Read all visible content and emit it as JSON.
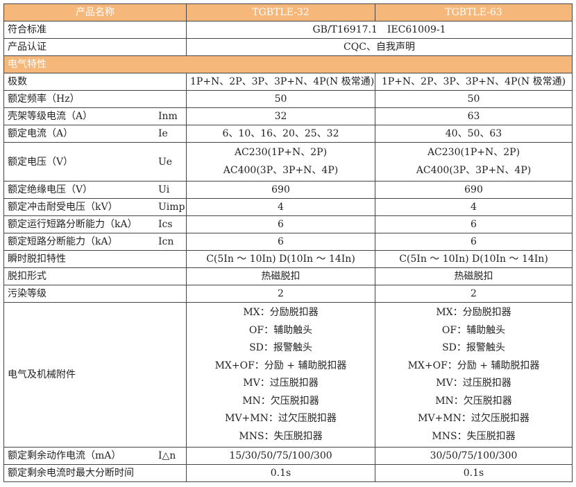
{
  "header": {
    "name": "产品名称",
    "model1": "TGBTLE-32",
    "model2": "TGBTLE-63"
  },
  "standard": {
    "label": "符合标准",
    "value": "GB/T16917.1　IEC61009-1"
  },
  "certification": {
    "label": "产品认证",
    "value": "CQC、自我声明"
  },
  "section": "电气特性",
  "rows": [
    {
      "label": "极数",
      "sym": "",
      "v1": [
        "1P+N、2P、3P、3P+N、4P(N 极常通)"
      ],
      "v2": [
        "1P+N、2P、3P、3P+N、4P(N 极常通)"
      ]
    },
    {
      "label": "额定频率（Hz）",
      "sym": "",
      "v1": [
        "50"
      ],
      "v2": [
        "50"
      ]
    },
    {
      "label": "壳架等级电流（A）",
      "sym": "Inm",
      "v1": [
        "32"
      ],
      "v2": [
        "63"
      ]
    },
    {
      "label": "额定电流（A）",
      "sym": "Ie",
      "v1": [
        "6、10、16、20、25、32"
      ],
      "v2": [
        "40、50、63"
      ]
    },
    {
      "label": "额定电压（V）",
      "sym": "Ue",
      "v1": [
        "AC230(1P+N、2P)",
        "AC400(3P、3P+N、4P)"
      ],
      "v2": [
        "AC230(1P+N、2P)",
        "AC400(3P、3P+N、4P)"
      ]
    },
    {
      "label": "额定绝缘电压（V）",
      "sym": "Ui",
      "v1": [
        "690"
      ],
      "v2": [
        "690"
      ]
    },
    {
      "label": "额定冲击耐受电压（kV）",
      "sym": "Uimp",
      "v1": [
        "4"
      ],
      "v2": [
        "4"
      ]
    },
    {
      "label": "额定运行短路分断能力（kA）",
      "sym": "Ics",
      "v1": [
        "6"
      ],
      "v2": [
        "6"
      ]
    },
    {
      "label": "额定短路分断能力（kA）",
      "sym": "Icn",
      "v1": [
        "6"
      ],
      "v2": [
        "6"
      ]
    },
    {
      "label": "瞬时脱扣特性",
      "sym": "",
      "v1": [
        "C(5In ～ 10In) D(10In ～ 14In)"
      ],
      "v2": [
        "C(5In ～ 10In) D(10In ～ 14In)"
      ]
    },
    {
      "label": "脱扣形式",
      "sym": "",
      "v1": [
        "热磁脱扣"
      ],
      "v2": [
        "热磁脱扣"
      ]
    },
    {
      "label": "污染等级",
      "sym": "",
      "v1": [
        "2"
      ],
      "v2": [
        "2"
      ]
    },
    {
      "label": "电气及机械附件",
      "sym": "",
      "v1": [
        "MX：分励脱扣器",
        "OF：辅助触头",
        "SD：报警触头",
        "MX+OF：分励 + 辅助脱扣器",
        "MV：过压脱扣器",
        "MN：欠压脱扣器",
        "MV+MN：过欠压脱扣器",
        "MNS：失压脱扣器"
      ],
      "v2": [
        "MX：分励脱扣器",
        "OF：辅助触头",
        "SD：报警触头",
        "MX+OF：分励 + 辅助脱扣器",
        "MV：过压脱扣器",
        "MN：欠压脱扣器",
        "MV+MN：过欠压脱扣器",
        "MNS：失压脱扣器"
      ]
    },
    {
      "label": "额定剩余动作电流（mA）",
      "sym": "I△n",
      "v1": [
        "15/30/50/75/100/300"
      ],
      "v2": [
        "30/50/75/100/300"
      ]
    },
    {
      "label": "额定剩余电流时最大分断时间",
      "sym": "",
      "v1": [
        "0.1s"
      ],
      "v2": [
        "0.1s"
      ]
    }
  ]
}
